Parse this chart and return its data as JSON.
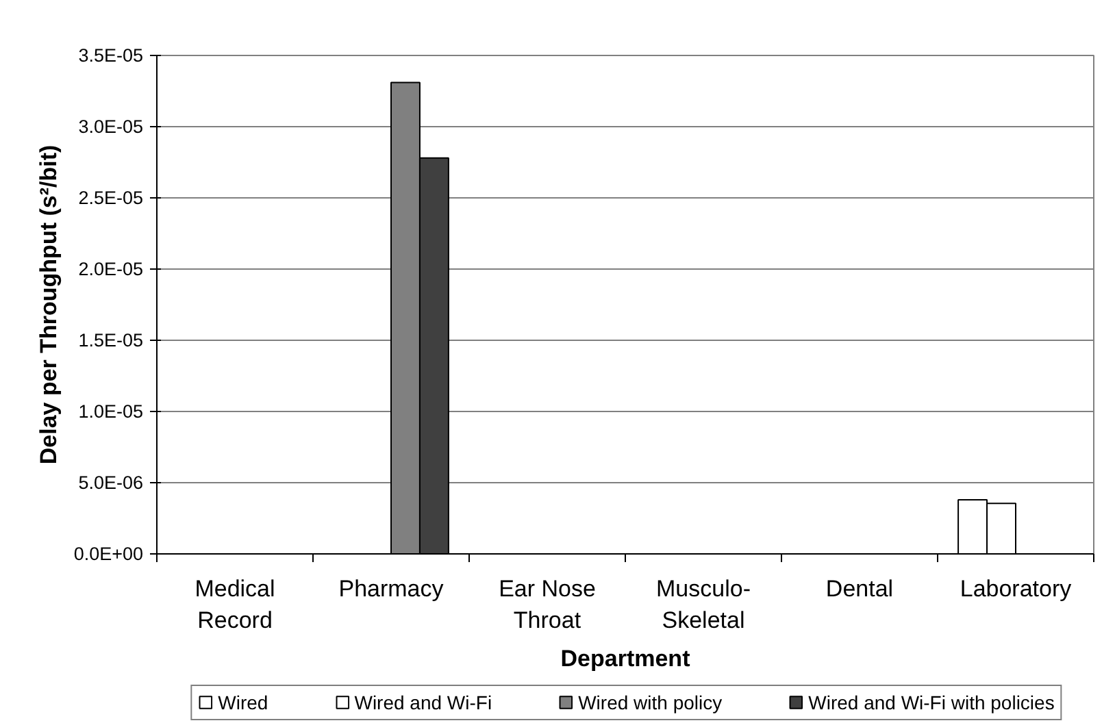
{
  "chart_data": {
    "type": "bar",
    "xlabel": "Department",
    "ylabel": "Delay per Throughput (s²/bit)",
    "categories": [
      "Medical Record",
      "Pharmacy",
      "Ear Nose Throat",
      "Musculo-Skeletal",
      "Dental",
      "Laboratory"
    ],
    "series": [
      {
        "name": "Wired",
        "color": "#ffffff",
        "values": [
          null,
          null,
          null,
          null,
          null,
          3.8e-06
        ]
      },
      {
        "name": "Wired and Wi-Fi",
        "color": "#ffffff",
        "values": [
          null,
          null,
          null,
          null,
          null,
          3.55e-06
        ]
      },
      {
        "name": "Wired with policy",
        "color": "#808080",
        "values": [
          null,
          3.31e-05,
          null,
          null,
          null,
          null
        ]
      },
      {
        "name": "Wired and Wi-Fi with policies",
        "color": "#404040",
        "values": [
          null,
          2.78e-05,
          null,
          null,
          null,
          null
        ]
      }
    ],
    "ylim": [
      0,
      3.5e-05
    ],
    "yticks": [
      {
        "value": 0,
        "label": "0.0E+00"
      },
      {
        "value": 5e-06,
        "label": "5.0E-06"
      },
      {
        "value": 1e-05,
        "label": "1.0E-05"
      },
      {
        "value": 1.5e-05,
        "label": "1.5E-05"
      },
      {
        "value": 2e-05,
        "label": "2.0E-05"
      },
      {
        "value": 2.5e-05,
        "label": "2.5E-05"
      },
      {
        "value": 3e-05,
        "label": "3.0E-05"
      },
      {
        "value": 3.5e-05,
        "label": "3.5E-05"
      }
    ],
    "grid": "y",
    "legend": "bottom"
  }
}
